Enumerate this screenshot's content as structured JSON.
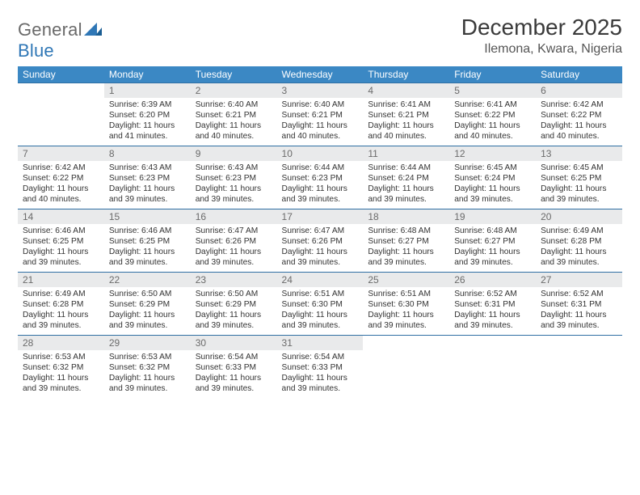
{
  "logo": {
    "word1": "General",
    "word2": "Blue"
  },
  "title": "December 2025",
  "location": "Ilemona, Kwara, Nigeria",
  "colors": {
    "header_bg": "#3b88c4",
    "header_fg": "#ffffff",
    "row_border": "#2f6fa3",
    "daynum_bg": "#e9eaeb",
    "daynum_fg": "#6b6b6b",
    "logo_gray": "#6a6a6a",
    "logo_blue": "#2f77b6"
  },
  "day_headers": [
    "Sunday",
    "Monday",
    "Tuesday",
    "Wednesday",
    "Thursday",
    "Friday",
    "Saturday"
  ],
  "weeks": [
    [
      {
        "n": "",
        "sr": "",
        "ss": "",
        "dl": ""
      },
      {
        "n": "1",
        "sr": "Sunrise: 6:39 AM",
        "ss": "Sunset: 6:20 PM",
        "dl": "Daylight: 11 hours and 41 minutes."
      },
      {
        "n": "2",
        "sr": "Sunrise: 6:40 AM",
        "ss": "Sunset: 6:21 PM",
        "dl": "Daylight: 11 hours and 40 minutes."
      },
      {
        "n": "3",
        "sr": "Sunrise: 6:40 AM",
        "ss": "Sunset: 6:21 PM",
        "dl": "Daylight: 11 hours and 40 minutes."
      },
      {
        "n": "4",
        "sr": "Sunrise: 6:41 AM",
        "ss": "Sunset: 6:21 PM",
        "dl": "Daylight: 11 hours and 40 minutes."
      },
      {
        "n": "5",
        "sr": "Sunrise: 6:41 AM",
        "ss": "Sunset: 6:22 PM",
        "dl": "Daylight: 11 hours and 40 minutes."
      },
      {
        "n": "6",
        "sr": "Sunrise: 6:42 AM",
        "ss": "Sunset: 6:22 PM",
        "dl": "Daylight: 11 hours and 40 minutes."
      }
    ],
    [
      {
        "n": "7",
        "sr": "Sunrise: 6:42 AM",
        "ss": "Sunset: 6:22 PM",
        "dl": "Daylight: 11 hours and 40 minutes."
      },
      {
        "n": "8",
        "sr": "Sunrise: 6:43 AM",
        "ss": "Sunset: 6:23 PM",
        "dl": "Daylight: 11 hours and 39 minutes."
      },
      {
        "n": "9",
        "sr": "Sunrise: 6:43 AM",
        "ss": "Sunset: 6:23 PM",
        "dl": "Daylight: 11 hours and 39 minutes."
      },
      {
        "n": "10",
        "sr": "Sunrise: 6:44 AM",
        "ss": "Sunset: 6:23 PM",
        "dl": "Daylight: 11 hours and 39 minutes."
      },
      {
        "n": "11",
        "sr": "Sunrise: 6:44 AM",
        "ss": "Sunset: 6:24 PM",
        "dl": "Daylight: 11 hours and 39 minutes."
      },
      {
        "n": "12",
        "sr": "Sunrise: 6:45 AM",
        "ss": "Sunset: 6:24 PM",
        "dl": "Daylight: 11 hours and 39 minutes."
      },
      {
        "n": "13",
        "sr": "Sunrise: 6:45 AM",
        "ss": "Sunset: 6:25 PM",
        "dl": "Daylight: 11 hours and 39 minutes."
      }
    ],
    [
      {
        "n": "14",
        "sr": "Sunrise: 6:46 AM",
        "ss": "Sunset: 6:25 PM",
        "dl": "Daylight: 11 hours and 39 minutes."
      },
      {
        "n": "15",
        "sr": "Sunrise: 6:46 AM",
        "ss": "Sunset: 6:25 PM",
        "dl": "Daylight: 11 hours and 39 minutes."
      },
      {
        "n": "16",
        "sr": "Sunrise: 6:47 AM",
        "ss": "Sunset: 6:26 PM",
        "dl": "Daylight: 11 hours and 39 minutes."
      },
      {
        "n": "17",
        "sr": "Sunrise: 6:47 AM",
        "ss": "Sunset: 6:26 PM",
        "dl": "Daylight: 11 hours and 39 minutes."
      },
      {
        "n": "18",
        "sr": "Sunrise: 6:48 AM",
        "ss": "Sunset: 6:27 PM",
        "dl": "Daylight: 11 hours and 39 minutes."
      },
      {
        "n": "19",
        "sr": "Sunrise: 6:48 AM",
        "ss": "Sunset: 6:27 PM",
        "dl": "Daylight: 11 hours and 39 minutes."
      },
      {
        "n": "20",
        "sr": "Sunrise: 6:49 AM",
        "ss": "Sunset: 6:28 PM",
        "dl": "Daylight: 11 hours and 39 minutes."
      }
    ],
    [
      {
        "n": "21",
        "sr": "Sunrise: 6:49 AM",
        "ss": "Sunset: 6:28 PM",
        "dl": "Daylight: 11 hours and 39 minutes."
      },
      {
        "n": "22",
        "sr": "Sunrise: 6:50 AM",
        "ss": "Sunset: 6:29 PM",
        "dl": "Daylight: 11 hours and 39 minutes."
      },
      {
        "n": "23",
        "sr": "Sunrise: 6:50 AM",
        "ss": "Sunset: 6:29 PM",
        "dl": "Daylight: 11 hours and 39 minutes."
      },
      {
        "n": "24",
        "sr": "Sunrise: 6:51 AM",
        "ss": "Sunset: 6:30 PM",
        "dl": "Daylight: 11 hours and 39 minutes."
      },
      {
        "n": "25",
        "sr": "Sunrise: 6:51 AM",
        "ss": "Sunset: 6:30 PM",
        "dl": "Daylight: 11 hours and 39 minutes."
      },
      {
        "n": "26",
        "sr": "Sunrise: 6:52 AM",
        "ss": "Sunset: 6:31 PM",
        "dl": "Daylight: 11 hours and 39 minutes."
      },
      {
        "n": "27",
        "sr": "Sunrise: 6:52 AM",
        "ss": "Sunset: 6:31 PM",
        "dl": "Daylight: 11 hours and 39 minutes."
      }
    ],
    [
      {
        "n": "28",
        "sr": "Sunrise: 6:53 AM",
        "ss": "Sunset: 6:32 PM",
        "dl": "Daylight: 11 hours and 39 minutes."
      },
      {
        "n": "29",
        "sr": "Sunrise: 6:53 AM",
        "ss": "Sunset: 6:32 PM",
        "dl": "Daylight: 11 hours and 39 minutes."
      },
      {
        "n": "30",
        "sr": "Sunrise: 6:54 AM",
        "ss": "Sunset: 6:33 PM",
        "dl": "Daylight: 11 hours and 39 minutes."
      },
      {
        "n": "31",
        "sr": "Sunrise: 6:54 AM",
        "ss": "Sunset: 6:33 PM",
        "dl": "Daylight: 11 hours and 39 minutes."
      },
      {
        "n": "",
        "sr": "",
        "ss": "",
        "dl": ""
      },
      {
        "n": "",
        "sr": "",
        "ss": "",
        "dl": ""
      },
      {
        "n": "",
        "sr": "",
        "ss": "",
        "dl": ""
      }
    ]
  ]
}
